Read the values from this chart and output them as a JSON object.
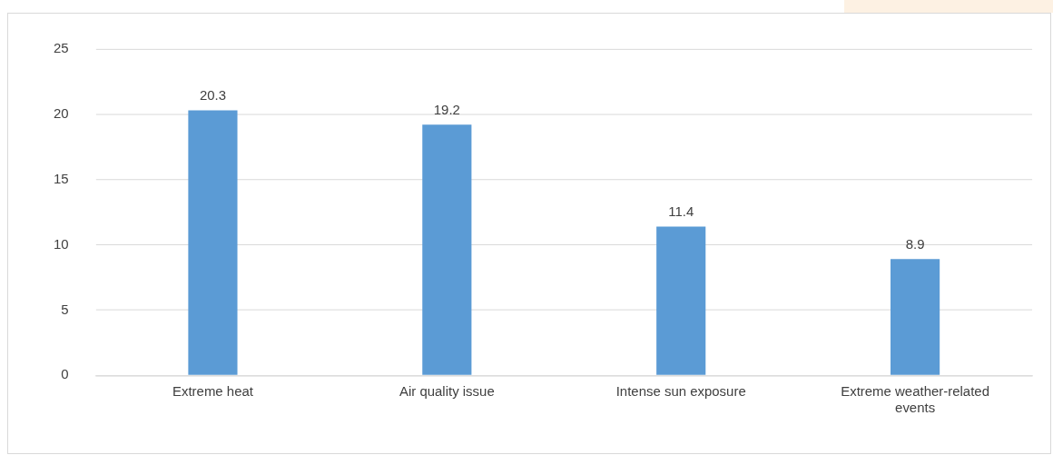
{
  "chart_data": {
    "type": "bar",
    "categories": [
      "Extreme heat",
      "Air quality issue",
      "Intense sun exposure",
      "Extreme weather-related events"
    ],
    "values": [
      20.3,
      19.2,
      11.4,
      8.9
    ],
    "color": "#5b9bd5",
    "ylim": [
      0,
      25
    ],
    "yticks": [
      0,
      5,
      10,
      15,
      20,
      25
    ],
    "grid": "y",
    "data_labels": true
  }
}
